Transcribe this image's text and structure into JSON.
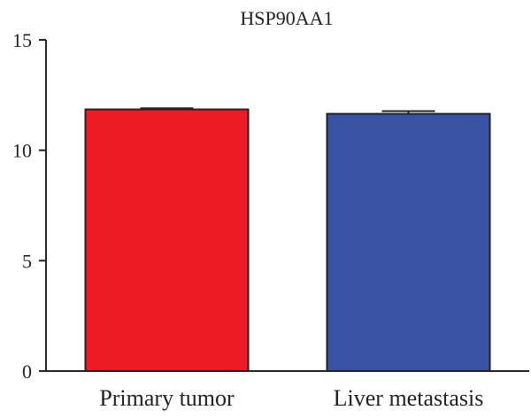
{
  "chart_data": {
    "type": "bar",
    "title": "HSP90AA1",
    "xlabel": "",
    "ylabel": "",
    "categories": [
      "Primary tumor",
      "Liver metastasis"
    ],
    "values": [
      11.85,
      11.65
    ],
    "errors": [
      0.05,
      0.12
    ],
    "colors": [
      "#ed1c24",
      "#3953a4"
    ],
    "ylim": [
      0,
      15
    ],
    "yticks": [
      0,
      5,
      10,
      15
    ],
    "ytick_labels": [
      "0",
      "5",
      "10",
      "15"
    ],
    "grid": false,
    "legend": "none"
  }
}
